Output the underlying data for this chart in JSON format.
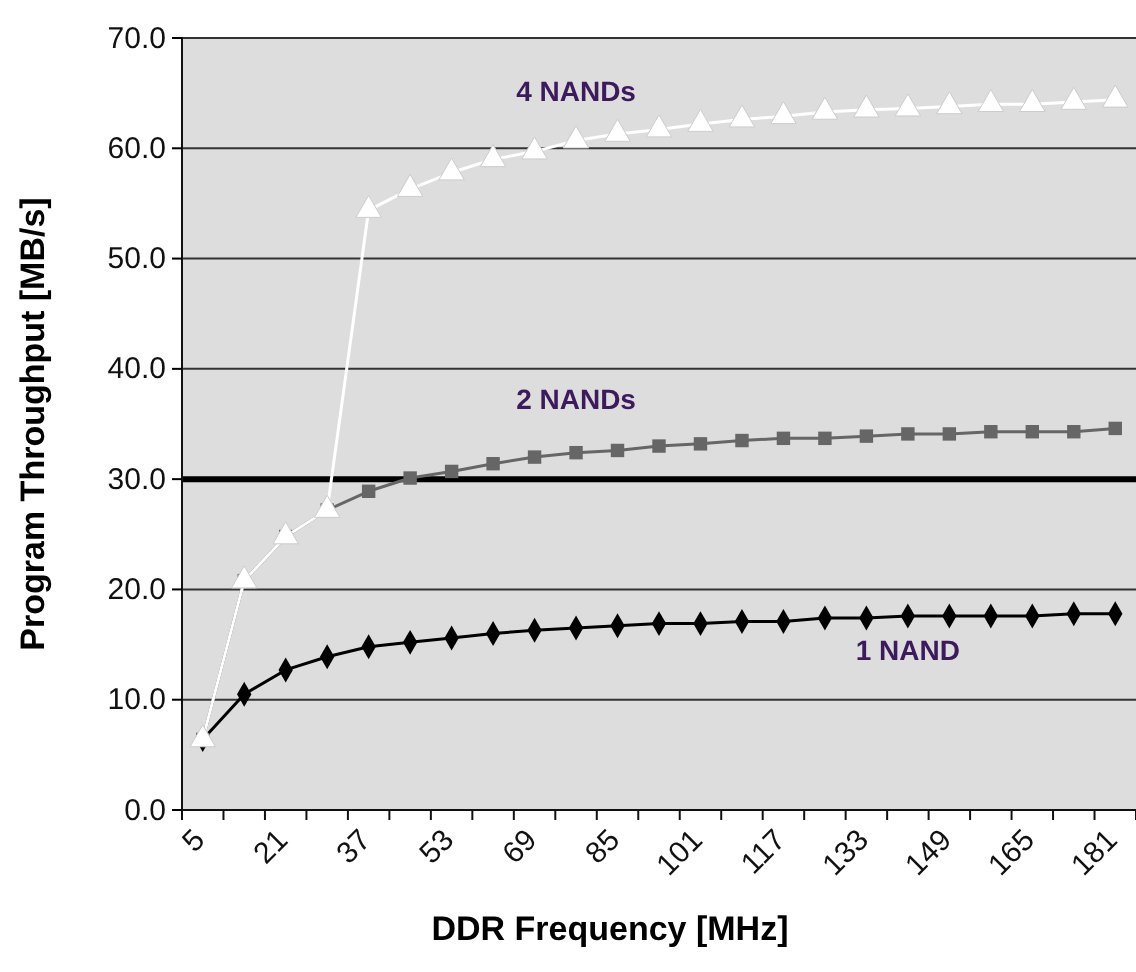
{
  "chart_data": {
    "type": "line",
    "xlabel": "DDR Frequency [MHz]",
    "ylabel": "Program Throughput [MB/s]",
    "categories": [
      "5",
      null,
      "21",
      null,
      "37",
      null,
      "53",
      null,
      "69",
      null,
      "85",
      null,
      "101",
      null,
      "117",
      null,
      "133",
      null,
      "149",
      null,
      "165",
      null,
      "181"
    ],
    "series": [
      {
        "name": "1 NAND",
        "color": "#000000",
        "marker": "diamond",
        "values": [
          6.4,
          10.5,
          12.7,
          13.9,
          14.8,
          15.2,
          15.6,
          16.0,
          16.3,
          16.5,
          16.7,
          16.9,
          16.9,
          17.1,
          17.1,
          17.4,
          17.4,
          17.6,
          17.6,
          17.6,
          17.6,
          17.8,
          17.8
        ]
      },
      {
        "name": "2 NANDs",
        "color": "#666666",
        "marker": "square",
        "values": [
          6.4,
          20.8,
          24.8,
          27.2,
          28.9,
          30.1,
          30.7,
          31.4,
          32.0,
          32.4,
          32.6,
          33.0,
          33.2,
          33.5,
          33.7,
          33.7,
          33.9,
          34.1,
          34.1,
          34.3,
          34.3,
          34.3,
          34.6
        ]
      },
      {
        "name": "4 NANDs",
        "color": "#ffffff",
        "marker": "triangle",
        "values": [
          6.4,
          20.8,
          24.8,
          27.2,
          54.4,
          56.3,
          57.8,
          59.0,
          59.7,
          60.7,
          61.3,
          61.7,
          62.2,
          62.6,
          62.9,
          63.3,
          63.5,
          63.6,
          63.8,
          64.0,
          64.0,
          64.2,
          64.4
        ]
      }
    ],
    "ylim": [
      0,
      70
    ],
    "yticks": [
      {
        "value": 0,
        "label": "0.0"
      },
      {
        "value": 10,
        "label": "10.0"
      },
      {
        "value": 20,
        "label": "20.0"
      },
      {
        "value": 30,
        "label": "30.0"
      },
      {
        "value": 40,
        "label": "40.0"
      },
      {
        "value": 50,
        "label": "50.0"
      },
      {
        "value": 60,
        "label": "60.0"
      },
      {
        "value": 70,
        "label": "70.0"
      }
    ],
    "grid": "y",
    "ref_lines": [
      {
        "axis": "y",
        "value": 30,
        "color": "#000000"
      }
    ]
  }
}
